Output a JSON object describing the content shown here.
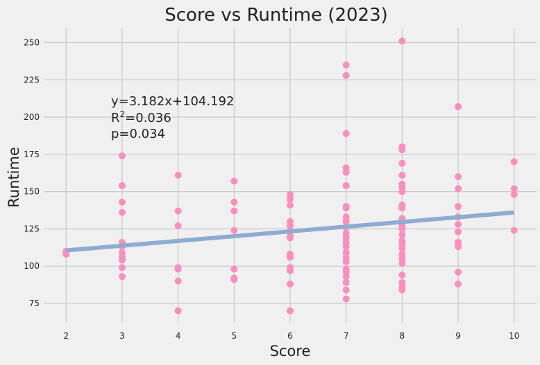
{
  "chart_data": {
    "type": "scatter",
    "title": "Score vs Runtime (2023)",
    "xlabel": "Score",
    "ylabel": "Runtime",
    "xlim": [
      1.6,
      10.4
    ],
    "ylim": [
      62,
      260
    ],
    "xticks": [
      2,
      3,
      4,
      5,
      6,
      7,
      8,
      9,
      10
    ],
    "yticks": [
      75,
      100,
      125,
      150,
      175,
      200,
      225,
      250
    ],
    "grid": true,
    "point_color": "#f78fbf",
    "line_color": "#8eabd0",
    "background_color": "#f0f0f0",
    "grid_color": "#cbcbcb",
    "regression": {
      "slope": 3.182,
      "intercept": 104.192,
      "x_range": [
        2,
        10
      ],
      "equation_text": "y=3.182x+104.192",
      "r2_prefix": "R",
      "r2_sup": "2",
      "r2_value": "=0.036",
      "p_text": "p=0.034"
    },
    "points": [
      {
        "x": 2,
        "y": 108
      },
      {
        "x": 2,
        "y": 110
      },
      {
        "x": 3,
        "y": 174
      },
      {
        "x": 3,
        "y": 154
      },
      {
        "x": 3,
        "y": 143
      },
      {
        "x": 3,
        "y": 136
      },
      {
        "x": 3,
        "y": 116
      },
      {
        "x": 3,
        "y": 113
      },
      {
        "x": 3,
        "y": 109
      },
      {
        "x": 3,
        "y": 106
      },
      {
        "x": 3,
        "y": 104
      },
      {
        "x": 3,
        "y": 99
      },
      {
        "x": 3,
        "y": 93
      },
      {
        "x": 4,
        "y": 161
      },
      {
        "x": 4,
        "y": 137
      },
      {
        "x": 4,
        "y": 127
      },
      {
        "x": 4,
        "y": 99
      },
      {
        "x": 4,
        "y": 98
      },
      {
        "x": 4,
        "y": 90
      },
      {
        "x": 4,
        "y": 70
      },
      {
        "x": 5,
        "y": 157
      },
      {
        "x": 5,
        "y": 143
      },
      {
        "x": 5,
        "y": 137
      },
      {
        "x": 5,
        "y": 124
      },
      {
        "x": 5,
        "y": 98
      },
      {
        "x": 5,
        "y": 92
      },
      {
        "x": 5,
        "y": 91
      },
      {
        "x": 6,
        "y": 148
      },
      {
        "x": 6,
        "y": 145
      },
      {
        "x": 6,
        "y": 141
      },
      {
        "x": 6,
        "y": 130
      },
      {
        "x": 6,
        "y": 127
      },
      {
        "x": 6,
        "y": 123
      },
      {
        "x": 6,
        "y": 120
      },
      {
        "x": 6,
        "y": 119
      },
      {
        "x": 6,
        "y": 108
      },
      {
        "x": 6,
        "y": 106
      },
      {
        "x": 6,
        "y": 99
      },
      {
        "x": 6,
        "y": 97
      },
      {
        "x": 6,
        "y": 88
      },
      {
        "x": 6,
        "y": 70
      },
      {
        "x": 7,
        "y": 235
      },
      {
        "x": 7,
        "y": 228
      },
      {
        "x": 7,
        "y": 189
      },
      {
        "x": 7,
        "y": 166
      },
      {
        "x": 7,
        "y": 163
      },
      {
        "x": 7,
        "y": 154
      },
      {
        "x": 7,
        "y": 140
      },
      {
        "x": 7,
        "y": 139
      },
      {
        "x": 7,
        "y": 133
      },
      {
        "x": 7,
        "y": 130
      },
      {
        "x": 7,
        "y": 126
      },
      {
        "x": 7,
        "y": 122
      },
      {
        "x": 7,
        "y": 119
      },
      {
        "x": 7,
        "y": 116
      },
      {
        "x": 7,
        "y": 113
      },
      {
        "x": 7,
        "y": 109
      },
      {
        "x": 7,
        "y": 106
      },
      {
        "x": 7,
        "y": 103
      },
      {
        "x": 7,
        "y": 98
      },
      {
        "x": 7,
        "y": 96
      },
      {
        "x": 7,
        "y": 93
      },
      {
        "x": 7,
        "y": 89
      },
      {
        "x": 7,
        "y": 84
      },
      {
        "x": 7,
        "y": 78
      },
      {
        "x": 8,
        "y": 251
      },
      {
        "x": 8,
        "y": 180
      },
      {
        "x": 8,
        "y": 178
      },
      {
        "x": 8,
        "y": 169
      },
      {
        "x": 8,
        "y": 161
      },
      {
        "x": 8,
        "y": 155
      },
      {
        "x": 8,
        "y": 153
      },
      {
        "x": 8,
        "y": 150
      },
      {
        "x": 8,
        "y": 141
      },
      {
        "x": 8,
        "y": 139
      },
      {
        "x": 8,
        "y": 132
      },
      {
        "x": 8,
        "y": 130
      },
      {
        "x": 8,
        "y": 127
      },
      {
        "x": 8,
        "y": 125
      },
      {
        "x": 8,
        "y": 121
      },
      {
        "x": 8,
        "y": 117
      },
      {
        "x": 8,
        "y": 115
      },
      {
        "x": 8,
        "y": 112
      },
      {
        "x": 8,
        "y": 108
      },
      {
        "x": 8,
        "y": 105
      },
      {
        "x": 8,
        "y": 102
      },
      {
        "x": 8,
        "y": 94
      },
      {
        "x": 8,
        "y": 89
      },
      {
        "x": 8,
        "y": 86
      },
      {
        "x": 8,
        "y": 84
      },
      {
        "x": 9,
        "y": 207
      },
      {
        "x": 9,
        "y": 160
      },
      {
        "x": 9,
        "y": 152
      },
      {
        "x": 9,
        "y": 140
      },
      {
        "x": 9,
        "y": 133
      },
      {
        "x": 9,
        "y": 128
      },
      {
        "x": 9,
        "y": 123
      },
      {
        "x": 9,
        "y": 116
      },
      {
        "x": 9,
        "y": 115
      },
      {
        "x": 9,
        "y": 113
      },
      {
        "x": 9,
        "y": 96
      },
      {
        "x": 9,
        "y": 88
      },
      {
        "x": 10,
        "y": 170
      },
      {
        "x": 10,
        "y": 152
      },
      {
        "x": 10,
        "y": 148
      },
      {
        "x": 10,
        "y": 124
      }
    ]
  }
}
